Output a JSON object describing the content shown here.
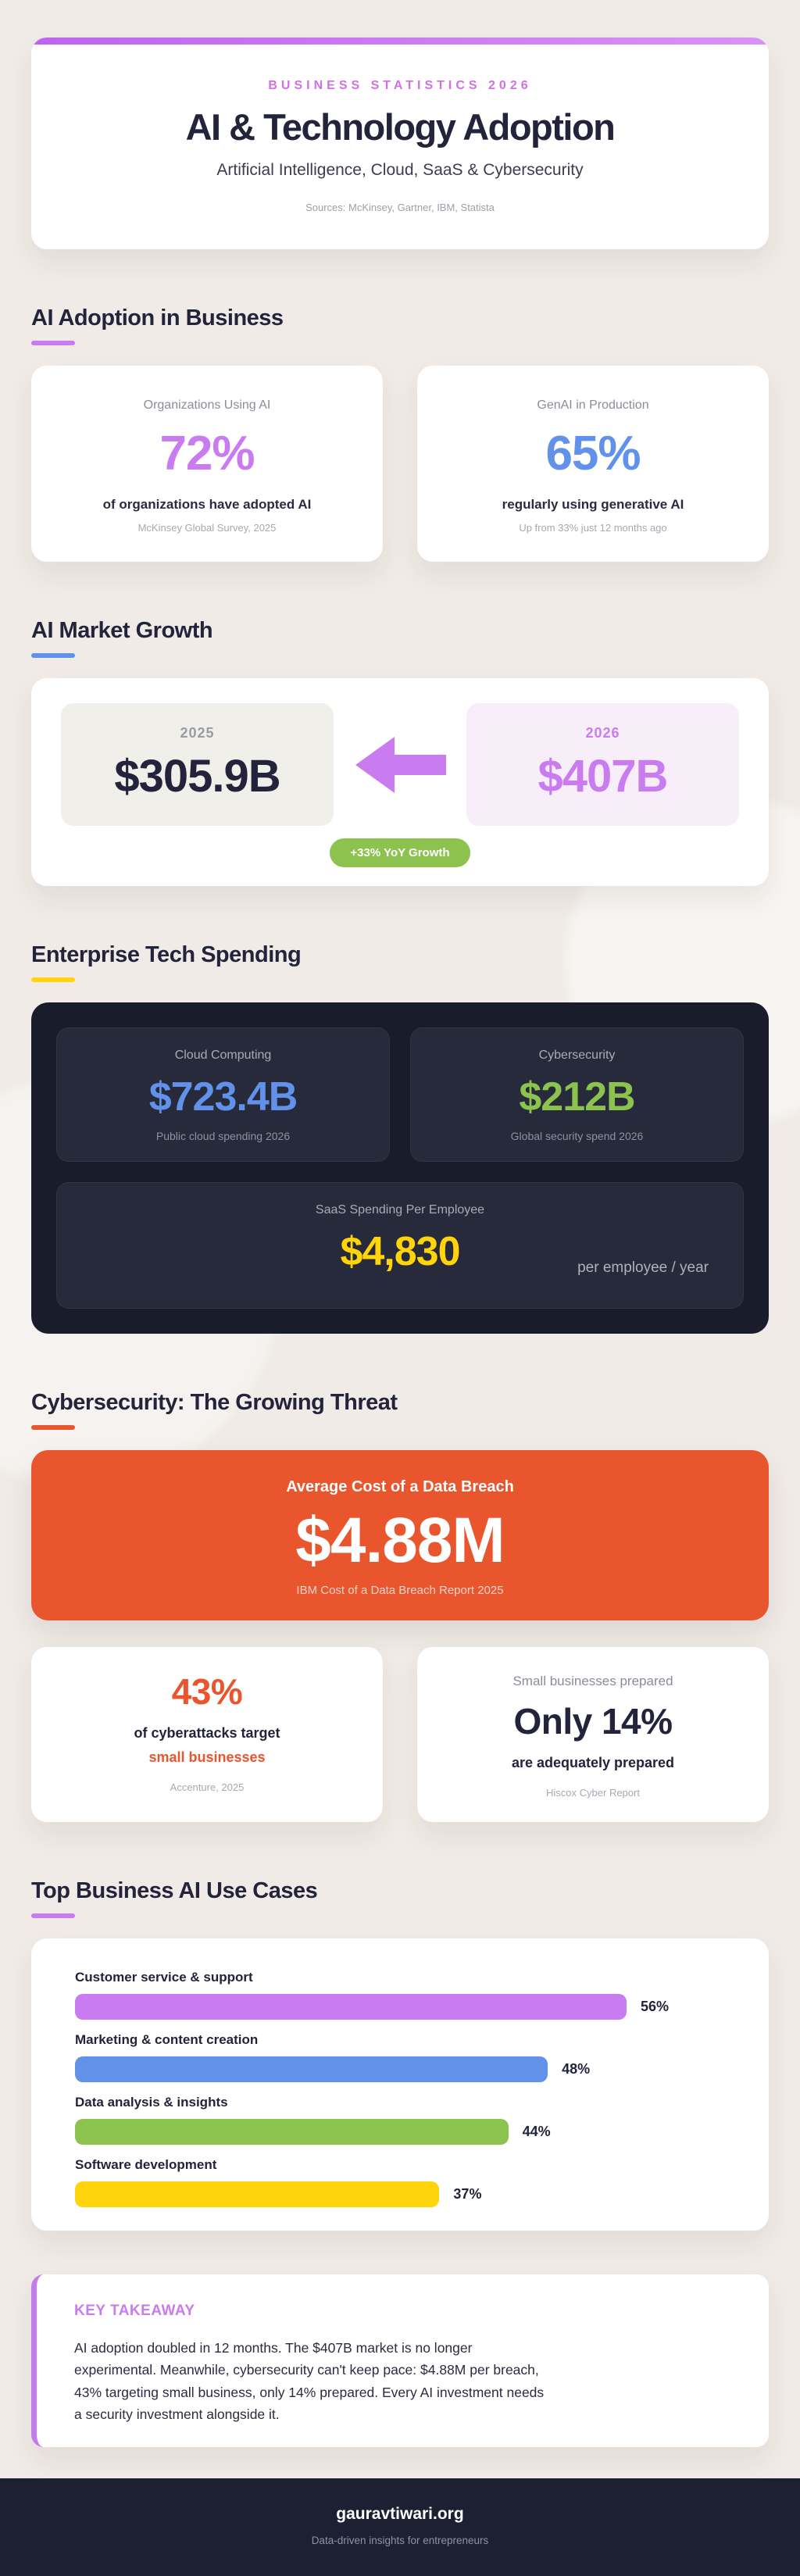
{
  "palette": {
    "purple": "#C97BF0",
    "purple_deep": "#D36FE6",
    "blue": "#6191E9",
    "green": "#8CC24E",
    "yellow": "#FFD40A",
    "orange": "#E9552D",
    "navy": "#23233C",
    "page_bg": "#F0EBE6",
    "dark_panel": "#191C2B",
    "footer_bg": "#1C2032"
  },
  "header": {
    "kicker": "BUSINESS STATISTICS 2026",
    "title": "AI & Technology Adoption",
    "subtitle": "Artificial Intelligence, Cloud, SaaS & Cybersecurity",
    "sources": "Sources: McKinsey, Gartner, IBM, Statista"
  },
  "adoption": {
    "heading": "AI Adoption in Business",
    "cards": [
      {
        "label": "Organizations Using AI",
        "value": "72%",
        "desc": "of organizations have adopted AI",
        "source": "McKinsey Global Survey, 2025"
      },
      {
        "label": "GenAI in Production",
        "value": "65%",
        "desc": "regularly using generative AI",
        "source": "Up from 33% just 12 months ago"
      }
    ]
  },
  "market": {
    "heading": "AI Market Growth",
    "from": {
      "year": "2025",
      "value": "$305.9B"
    },
    "to": {
      "year": "2026",
      "value": "$407B"
    },
    "badge": "+33% YoY Growth"
  },
  "spending": {
    "heading": "Enterprise Tech Spending",
    "cards": [
      {
        "label": "Cloud Computing",
        "value": "$723.4B",
        "desc": "Public cloud spending 2026"
      },
      {
        "label": "Cybersecurity",
        "value": "$212B",
        "desc": "Global security spend 2026"
      }
    ],
    "saas": {
      "label": "SaaS Spending Per Employee",
      "value": "$4,830",
      "unit": "per employee / year"
    }
  },
  "cyber": {
    "heading": "Cybersecurity: The Growing Threat",
    "breach": {
      "label": "Average Cost of a Data Breach",
      "value": "$4.88M",
      "source": "IBM Cost of a Data Breach Report 2025"
    },
    "attacks": {
      "value": "43%",
      "line1": "of cyberattacks target",
      "line2": "small businesses",
      "source": "Accenture, 2025"
    },
    "prepared": {
      "label": "Small businesses prepared",
      "value": "Only 14%",
      "desc": "are adequately prepared",
      "source": "Hiscox Cyber Report"
    }
  },
  "use_cases": {
    "heading": "Top Business AI Use Cases",
    "scale_max": 66,
    "bars": [
      {
        "label": "Customer service & support",
        "value": 56,
        "pct": "56%",
        "color": "#C97BF0"
      },
      {
        "label": "Marketing & content creation",
        "value": 48,
        "pct": "48%",
        "color": "#6191E9"
      },
      {
        "label": "Data analysis & insights",
        "value": 44,
        "pct": "44%",
        "color": "#8CC24E"
      },
      {
        "label": "Software development",
        "value": 37,
        "pct": "37%",
        "color": "#FFD40A"
      }
    ]
  },
  "takeaway": {
    "heading": "KEY TAKEAWAY",
    "body": "AI adoption doubled in 12 months. The $407B market is no longer experimental. Meanwhile, cybersecurity can't keep pace: $4.88M per breach, 43% targeting small business, only 14% prepared. Every AI investment needs a security investment alongside it."
  },
  "footer": {
    "site": "gauravtiwari.org",
    "tagline": "Data-driven insights for entrepreneurs"
  },
  "chart_data": {
    "type": "bar",
    "orientation": "horizontal",
    "title": "Top Business AI Use Cases",
    "categories": [
      "Customer service & support",
      "Marketing & content creation",
      "Data analysis & insights",
      "Software development"
    ],
    "values": [
      56,
      48,
      44,
      37
    ],
    "unit": "%",
    "xlim": [
      0,
      66
    ],
    "legend": false,
    "data_labels": [
      "56%",
      "48%",
      "44%",
      "37%"
    ]
  }
}
